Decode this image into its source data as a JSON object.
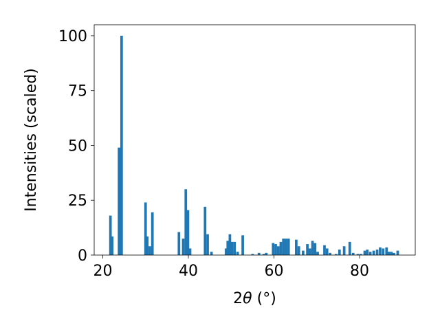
{
  "chart_data": {
    "type": "bar",
    "xlabel_main": "2",
    "xlabel_theta": "θ",
    "xlabel_unit": " (°)",
    "ylabel": "Intensities (scaled)",
    "xlim": [
      18,
      93
    ],
    "ylim": [
      0,
      105
    ],
    "xticks": [
      20,
      40,
      60,
      80
    ],
    "yticks": [
      0,
      25,
      50,
      75,
      100
    ],
    "bar_color": "#1f77b4",
    "bar_width": 0.6,
    "x": [
      21.8,
      22.2,
      23.8,
      24.4,
      30.0,
      30.4,
      31.0,
      31.6,
      37.8,
      38.8,
      39.4,
      39.9,
      40.4,
      43.9,
      44.5,
      45.4,
      48.8,
      49.2,
      49.7,
      50.2,
      50.8,
      51.5,
      52.7,
      55.0,
      56.5,
      57.6,
      58.2,
      59.8,
      60.4,
      61.0,
      61.6,
      62.2,
      62.8,
      63.4,
      65.2,
      65.8,
      66.8,
      67.8,
      68.4,
      69.0,
      69.6,
      70.2,
      71.8,
      72.4,
      73.1,
      74.5,
      75.3,
      76.4,
      77.7,
      78.5,
      79.6,
      80.3,
      81.2,
      81.8,
      82.5,
      83.3,
      84.1,
      84.8,
      85.5,
      86.3,
      86.8,
      87.4,
      88.0,
      88.9
    ],
    "values": [
      18,
      8.5,
      49,
      100,
      24,
      8.5,
      4,
      19.5,
      10.5,
      7.5,
      30,
      20.5,
      3,
      22,
      9.5,
      1.5,
      3,
      6.5,
      9.5,
      6,
      6,
      1.5,
      9,
      0.5,
      1,
      0.5,
      1,
      5.5,
      5,
      4,
      6,
      7.5,
      7.5,
      7.5,
      7,
      4,
      2,
      5,
      3,
      6.5,
      5.5,
      1.5,
      4.5,
      3,
      1,
      0.5,
      2.5,
      4,
      6,
      1,
      0.5,
      0.5,
      2,
      2.5,
      1.5,
      2,
      2.5,
      3.5,
      3,
      3.5,
      1.5,
      1.5,
      1,
      2
    ]
  }
}
